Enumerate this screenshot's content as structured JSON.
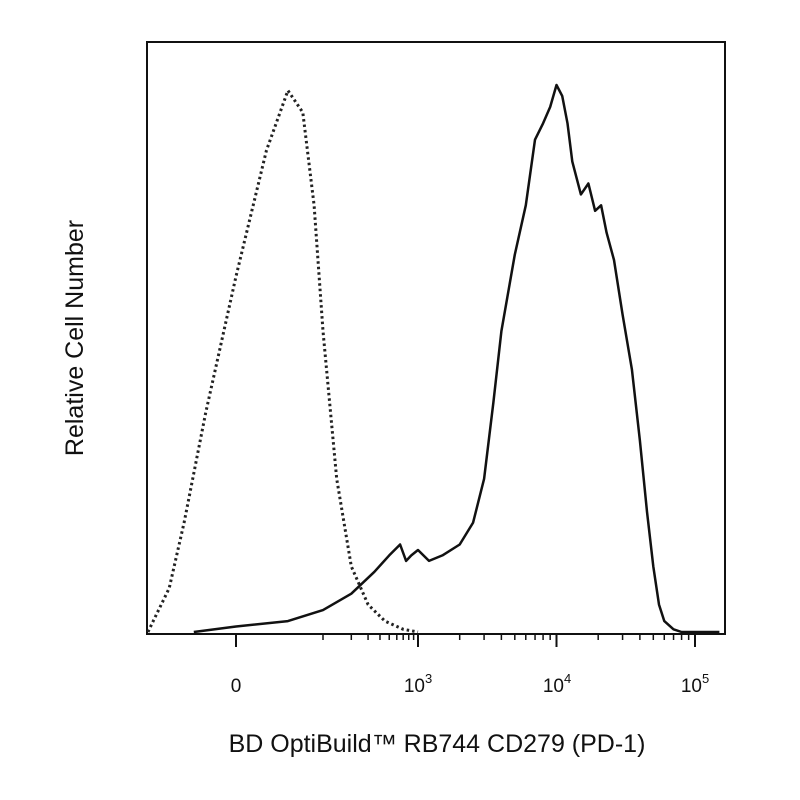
{
  "chart_data": {
    "type": "line",
    "title": "",
    "xlabel": "BD OptiBuild™ RB744 CD279 (PD-1)",
    "ylabel": "Relative Cell Number",
    "x_scale": "biexponential (logicle)",
    "x_tick_labels": [
      {
        "value": 0,
        "base": "0",
        "exp": ""
      },
      {
        "value": 1000,
        "base": "10",
        "exp": "3"
      },
      {
        "value": 10000,
        "base": "10",
        "exp": "4"
      },
      {
        "value": 100000,
        "base": "10",
        "exp": "5"
      }
    ],
    "ylim": [
      0,
      1
    ],
    "grid": false,
    "legend": "none",
    "series": [
      {
        "style": "dotted",
        "color": "#222222",
        "x": [
          -120,
          -90,
          -60,
          -40,
          -20,
          0,
          20,
          40,
          60,
          80,
          100,
          140,
          200,
          300,
          450,
          700,
          1000
        ],
        "y": [
          0.0,
          0.02,
          0.08,
          0.2,
          0.4,
          0.65,
          0.88,
          0.99,
          0.95,
          0.78,
          0.55,
          0.28,
          0.12,
          0.05,
          0.02,
          0.005,
          0.0
        ]
      },
      {
        "style": "solid",
        "color": "#111111",
        "x": [
          -30,
          0,
          40,
          100,
          200,
          350,
          500,
          650,
          750,
          850,
          1000,
          1200,
          1500,
          2000,
          2500,
          3000,
          3500,
          4000,
          5000,
          6000,
          7000,
          8000,
          9000,
          10000,
          11000,
          12000,
          13000,
          15000,
          17000,
          19000,
          21000,
          23000,
          26000,
          30000,
          35000,
          40000,
          45000,
          50000,
          55000,
          60000,
          70000,
          80000,
          90000,
          100000,
          150000
        ],
        "y": [
          0.0,
          0.01,
          0.02,
          0.04,
          0.07,
          0.11,
          0.14,
          0.16,
          0.13,
          0.14,
          0.15,
          0.13,
          0.14,
          0.16,
          0.2,
          0.28,
          0.42,
          0.55,
          0.69,
          0.78,
          0.9,
          0.93,
          0.96,
          1.0,
          0.98,
          0.93,
          0.86,
          0.8,
          0.82,
          0.77,
          0.78,
          0.73,
          0.68,
          0.58,
          0.48,
          0.35,
          0.22,
          0.12,
          0.05,
          0.02,
          0.005,
          0.0,
          0.0,
          0.0,
          0.0
        ]
      }
    ]
  }
}
